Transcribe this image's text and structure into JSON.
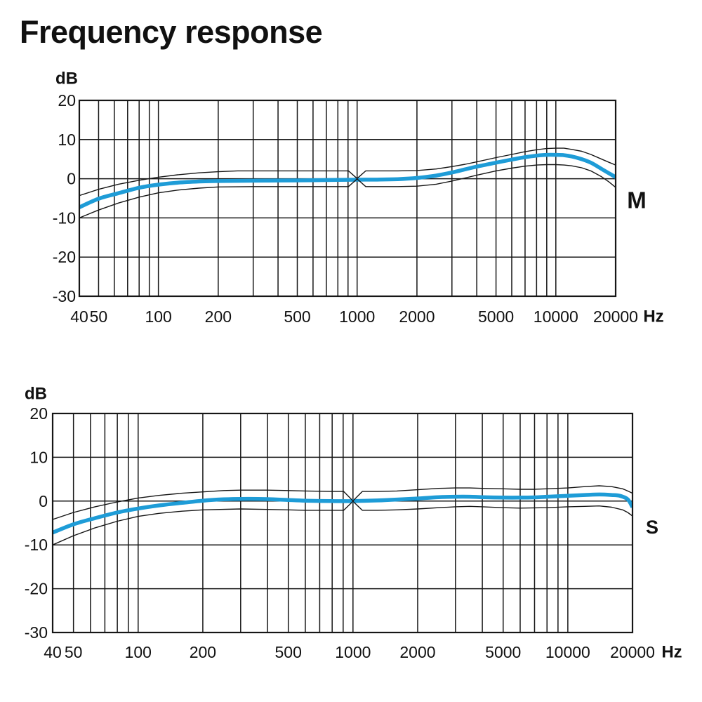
{
  "page": {
    "title": "Frequency response"
  },
  "colors": {
    "curve_blue": "#1e9cd7",
    "line_black": "#161616",
    "text_black": "#111111",
    "background": "#ffffff"
  },
  "chart_data": [
    {
      "type": "line",
      "id": "M",
      "side_label": "M",
      "y_unit_label": "dB",
      "x_unit_label": "Hz",
      "x_scale": "log",
      "xlim": [
        40,
        20000
      ],
      "ylim": [
        -30,
        20
      ],
      "grid": true,
      "x_ticks": [
        {
          "f": 40,
          "label": "40"
        },
        {
          "f": 50,
          "label": "50"
        },
        {
          "f": 100,
          "label": "100"
        },
        {
          "f": 200,
          "label": "200"
        },
        {
          "f": 500,
          "label": "500"
        },
        {
          "f": 1000,
          "label": "1000"
        },
        {
          "f": 2000,
          "label": "2000"
        },
        {
          "f": 5000,
          "label": "5000"
        },
        {
          "f": 10000,
          "label": "10000"
        },
        {
          "f": 20000,
          "label": "20000"
        }
      ],
      "y_ticks": [
        {
          "v": 20,
          "label": "20"
        },
        {
          "v": 10,
          "label": "10"
        },
        {
          "v": 0,
          "label": "0"
        },
        {
          "v": -10,
          "label": "-10"
        },
        {
          "v": -20,
          "label": "-20"
        },
        {
          "v": -30,
          "label": "-30"
        }
      ],
      "grid_frequencies": [
        40,
        50,
        60,
        70,
        80,
        90,
        100,
        200,
        300,
        400,
        500,
        600,
        700,
        800,
        900,
        1000,
        2000,
        3000,
        4000,
        5000,
        6000,
        7000,
        8000,
        9000,
        10000,
        20000
      ],
      "grid_db": [
        20,
        10,
        0,
        -10,
        -20,
        -30
      ],
      "series": [
        {
          "name": "response",
          "style": "thick-blue",
          "smooth": true,
          "points": [
            [
              40,
              -7.3
            ],
            [
              50,
              -5.1
            ],
            [
              63,
              -3.7
            ],
            [
              80,
              -2.3
            ],
            [
              100,
              -1.5
            ],
            [
              125,
              -1.0
            ],
            [
              160,
              -0.7
            ],
            [
              200,
              -0.6
            ],
            [
              300,
              -0.5
            ],
            [
              400,
              -0.45
            ],
            [
              600,
              -0.4
            ],
            [
              800,
              -0.3
            ],
            [
              1000,
              -0.25
            ],
            [
              1300,
              -0.2
            ],
            [
              1600,
              -0.1
            ],
            [
              2000,
              0.2
            ],
            [
              2500,
              0.8
            ],
            [
              3000,
              1.6
            ],
            [
              3500,
              2.4
            ],
            [
              4000,
              3.1
            ],
            [
              5000,
              4.1
            ],
            [
              6000,
              4.9
            ],
            [
              7000,
              5.5
            ],
            [
              8000,
              5.9
            ],
            [
              9000,
              6.1
            ],
            [
              10000,
              6.1
            ],
            [
              11000,
              6.0
            ],
            [
              12000,
              5.7
            ],
            [
              13500,
              5.0
            ],
            [
              15000,
              4.1
            ],
            [
              17000,
              2.5
            ],
            [
              18500,
              1.4
            ],
            [
              20000,
              0.4
            ]
          ]
        },
        {
          "name": "tolerance-upper",
          "style": "thin-black",
          "smooth": false,
          "points": [
            [
              40,
              -4.3
            ],
            [
              50,
              -2.7
            ],
            [
              63,
              -1.4
            ],
            [
              80,
              -0.4
            ],
            [
              100,
              0.4
            ],
            [
              125,
              1.0
            ],
            [
              160,
              1.5
            ],
            [
              200,
              1.8
            ],
            [
              250,
              2.0
            ],
            [
              300,
              2.0
            ],
            [
              500,
              2.0
            ],
            [
              700,
              2.0
            ],
            [
              905,
              2.0
            ],
            [
              1000,
              0.05
            ],
            [
              1105,
              2.0
            ],
            [
              1300,
              2.0
            ],
            [
              1600,
              2.0
            ],
            [
              2000,
              2.1
            ],
            [
              2500,
              2.5
            ],
            [
              3000,
              3.1
            ],
            [
              3500,
              3.7
            ],
            [
              4000,
              4.3
            ],
            [
              5000,
              5.4
            ],
            [
              6000,
              6.2
            ],
            [
              7000,
              6.9
            ],
            [
              8000,
              7.4
            ],
            [
              9000,
              7.7
            ],
            [
              10000,
              7.8
            ],
            [
              11000,
              7.8
            ],
            [
              12000,
              7.5
            ],
            [
              13500,
              7.0
            ],
            [
              15000,
              6.2
            ],
            [
              17000,
              5.0
            ],
            [
              18500,
              4.2
            ],
            [
              20000,
              3.5
            ]
          ]
        },
        {
          "name": "tolerance-lower",
          "style": "thin-black",
          "smooth": false,
          "points": [
            [
              40,
              -10
            ],
            [
              50,
              -8.0
            ],
            [
              63,
              -6.2
            ],
            [
              80,
              -4.7
            ],
            [
              100,
              -3.6
            ],
            [
              125,
              -2.9
            ],
            [
              160,
              -2.4
            ],
            [
              200,
              -2.1
            ],
            [
              300,
              -2.0
            ],
            [
              500,
              -2.0
            ],
            [
              700,
              -2.0
            ],
            [
              905,
              -2.0
            ],
            [
              1000,
              -0.05
            ],
            [
              1105,
              -2.0
            ],
            [
              1300,
              -2.0
            ],
            [
              1600,
              -2.0
            ],
            [
              2000,
              -1.9
            ],
            [
              2500,
              -1.4
            ],
            [
              3000,
              -0.6
            ],
            [
              3500,
              0.2
            ],
            [
              4000,
              0.9
            ],
            [
              5000,
              2.0
            ],
            [
              6000,
              2.7
            ],
            [
              7000,
              3.2
            ],
            [
              8000,
              3.5
            ],
            [
              9000,
              3.6
            ],
            [
              10000,
              3.6
            ],
            [
              11000,
              3.5
            ],
            [
              12000,
              3.3
            ],
            [
              13500,
              2.8
            ],
            [
              15000,
              2.0
            ],
            [
              17000,
              0.5
            ],
            [
              18500,
              -0.8
            ],
            [
              20000,
              -2.2
            ]
          ]
        }
      ]
    },
    {
      "type": "line",
      "id": "S",
      "side_label": "S",
      "y_unit_label": "dB",
      "x_unit_label": "Hz",
      "x_scale": "log",
      "xlim": [
        40,
        20000
      ],
      "ylim": [
        -30,
        20
      ],
      "grid": true,
      "x_ticks": [
        {
          "f": 40,
          "label": "40"
        },
        {
          "f": 50,
          "label": "50"
        },
        {
          "f": 100,
          "label": "100"
        },
        {
          "f": 200,
          "label": "200"
        },
        {
          "f": 500,
          "label": "500"
        },
        {
          "f": 1000,
          "label": "1000"
        },
        {
          "f": 2000,
          "label": "2000"
        },
        {
          "f": 5000,
          "label": "5000"
        },
        {
          "f": 10000,
          "label": "10000"
        },
        {
          "f": 20000,
          "label": "20000"
        }
      ],
      "y_ticks": [
        {
          "v": 20,
          "label": "20"
        },
        {
          "v": 10,
          "label": "10"
        },
        {
          "v": 0,
          "label": "0"
        },
        {
          "v": -10,
          "label": "-10"
        },
        {
          "v": -20,
          "label": "-20"
        },
        {
          "v": -30,
          "label": "-30"
        }
      ],
      "grid_frequencies": [
        40,
        50,
        60,
        70,
        80,
        90,
        100,
        200,
        300,
        400,
        500,
        600,
        700,
        800,
        900,
        1000,
        2000,
        3000,
        4000,
        5000,
        6000,
        7000,
        8000,
        9000,
        10000,
        20000
      ],
      "grid_db": [
        20,
        10,
        0,
        -10,
        -20,
        -30
      ],
      "series": [
        {
          "name": "response",
          "style": "thick-blue",
          "smooth": true,
          "points": [
            [
              40,
              -7.2
            ],
            [
              50,
              -5.3
            ],
            [
              63,
              -3.9
            ],
            [
              80,
              -2.6
            ],
            [
              100,
              -1.7
            ],
            [
              125,
              -1.0
            ],
            [
              160,
              -0.4
            ],
            [
              200,
              0.1
            ],
            [
              250,
              0.4
            ],
            [
              300,
              0.5
            ],
            [
              400,
              0.45
            ],
            [
              500,
              0.25
            ],
            [
              600,
              0.1
            ],
            [
              800,
              0.0
            ],
            [
              1000,
              0.0
            ],
            [
              1300,
              0.15
            ],
            [
              1600,
              0.35
            ],
            [
              2000,
              0.6
            ],
            [
              2500,
              0.9
            ],
            [
              3000,
              1.0
            ],
            [
              3500,
              1.0
            ],
            [
              4000,
              0.9
            ],
            [
              5000,
              0.8
            ],
            [
              6000,
              0.8
            ],
            [
              7000,
              0.85
            ],
            [
              8000,
              1.0
            ],
            [
              10000,
              1.2
            ],
            [
              12000,
              1.4
            ],
            [
              14000,
              1.5
            ],
            [
              16000,
              1.4
            ],
            [
              17500,
              1.2
            ],
            [
              19000,
              0.4
            ],
            [
              20000,
              -1.4
            ]
          ]
        },
        {
          "name": "tolerance-upper",
          "style": "thin-black",
          "smooth": false,
          "points": [
            [
              40,
              -4.2
            ],
            [
              50,
              -2.6
            ],
            [
              63,
              -1.3
            ],
            [
              80,
              -0.2
            ],
            [
              100,
              0.7
            ],
            [
              125,
              1.3
            ],
            [
              160,
              1.8
            ],
            [
              200,
              2.1
            ],
            [
              250,
              2.4
            ],
            [
              300,
              2.5
            ],
            [
              400,
              2.5
            ],
            [
              500,
              2.4
            ],
            [
              600,
              2.3
            ],
            [
              800,
              2.2
            ],
            [
              905,
              2.2
            ],
            [
              1000,
              0.05
            ],
            [
              1105,
              2.2
            ],
            [
              1300,
              2.2
            ],
            [
              1600,
              2.3
            ],
            [
              2000,
              2.6
            ],
            [
              2500,
              2.9
            ],
            [
              3000,
              3.0
            ],
            [
              3500,
              3.0
            ],
            [
              4000,
              2.9
            ],
            [
              5000,
              2.8
            ],
            [
              6000,
              2.7
            ],
            [
              7000,
              2.7
            ],
            [
              8000,
              2.8
            ],
            [
              10000,
              3.0
            ],
            [
              12000,
              3.3
            ],
            [
              14000,
              3.5
            ],
            [
              16000,
              3.3
            ],
            [
              18000,
              2.8
            ],
            [
              19000,
              2.3
            ],
            [
              20000,
              1.8
            ]
          ]
        },
        {
          "name": "tolerance-lower",
          "style": "thin-black",
          "smooth": false,
          "points": [
            [
              40,
              -10
            ],
            [
              50,
              -7.9
            ],
            [
              63,
              -6.1
            ],
            [
              80,
              -4.6
            ],
            [
              100,
              -3.5
            ],
            [
              125,
              -2.8
            ],
            [
              160,
              -2.3
            ],
            [
              200,
              -2.0
            ],
            [
              300,
              -1.8
            ],
            [
              400,
              -1.9
            ],
            [
              500,
              -2.0
            ],
            [
              600,
              -2.1
            ],
            [
              800,
              -2.1
            ],
            [
              905,
              -2.1
            ],
            [
              1000,
              -0.05
            ],
            [
              1105,
              -2.1
            ],
            [
              1300,
              -2.1
            ],
            [
              1600,
              -2.0
            ],
            [
              2000,
              -1.8
            ],
            [
              2500,
              -1.5
            ],
            [
              3000,
              -1.3
            ],
            [
              3500,
              -1.2
            ],
            [
              4000,
              -1.3
            ],
            [
              5000,
              -1.5
            ],
            [
              6000,
              -1.6
            ],
            [
              8000,
              -1.5
            ],
            [
              10000,
              -1.3
            ],
            [
              12000,
              -1.2
            ],
            [
              14000,
              -1.1
            ],
            [
              16000,
              -1.4
            ],
            [
              18000,
              -2.0
            ],
            [
              19000,
              -2.6
            ],
            [
              20000,
              -3.4
            ]
          ]
        }
      ]
    }
  ]
}
